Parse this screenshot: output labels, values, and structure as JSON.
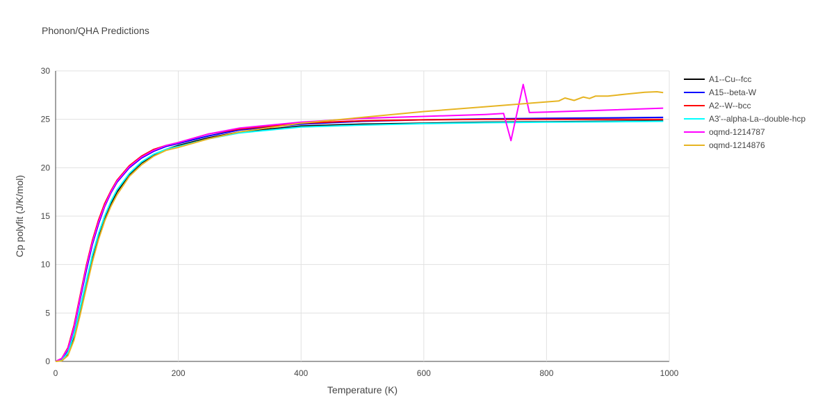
{
  "chart_data": {
    "type": "line",
    "title": "Phonon/QHA Predictions",
    "xlabel": "Temperature (K)",
    "ylabel": "Cp polyfit (J/K/mol)",
    "xlim": [
      0,
      1000
    ],
    "ylim": [
      0,
      30
    ],
    "xticks": [
      0,
      200,
      400,
      600,
      800,
      1000
    ],
    "yticks": [
      0,
      5,
      10,
      15,
      20,
      25,
      30
    ],
    "grid": true,
    "legend_position": "right",
    "series": [
      {
        "name": "A1--Cu--fcc",
        "color": "#000000",
        "x": [
          0,
          10,
          20,
          30,
          40,
          50,
          60,
          70,
          80,
          90,
          100,
          120,
          140,
          160,
          180,
          200,
          250,
          300,
          400,
          500,
          600,
          700,
          800,
          900,
          990
        ],
        "y": [
          0,
          0.1,
          0.8,
          2.6,
          5.2,
          8.0,
          10.7,
          12.9,
          14.8,
          16.3,
          17.5,
          19.3,
          20.5,
          21.3,
          21.9,
          22.3,
          23.1,
          23.7,
          24.3,
          24.5,
          24.6,
          24.7,
          24.75,
          24.8,
          24.85
        ]
      },
      {
        "name": "A15--beta-W",
        "color": "#0000ff",
        "x": [
          0,
          10,
          20,
          30,
          40,
          50,
          60,
          70,
          80,
          90,
          100,
          120,
          140,
          160,
          180,
          200,
          250,
          300,
          400,
          500,
          600,
          700,
          800,
          900,
          990
        ],
        "y": [
          0,
          0.2,
          1.2,
          3.4,
          6.4,
          9.4,
          12.1,
          14.2,
          16.0,
          17.4,
          18.5,
          20.0,
          21.0,
          21.7,
          22.2,
          22.5,
          23.3,
          23.9,
          24.5,
          24.8,
          24.95,
          25.05,
          25.1,
          25.15,
          25.2
        ]
      },
      {
        "name": "A2--W--bcc",
        "color": "#ff0000",
        "x": [
          0,
          10,
          20,
          30,
          40,
          50,
          60,
          70,
          80,
          90,
          100,
          120,
          140,
          160,
          180,
          200,
          250,
          300,
          400,
          500,
          600,
          700,
          800,
          900,
          990
        ],
        "y": [
          0,
          0.3,
          1.4,
          3.7,
          6.8,
          9.9,
          12.5,
          14.6,
          16.3,
          17.6,
          18.7,
          20.2,
          21.2,
          21.9,
          22.3,
          22.6,
          23.5,
          24.0,
          24.6,
          24.85,
          24.95,
          25.0,
          25.0,
          25.0,
          25.0
        ]
      },
      {
        "name": "A3'--alpha-La--double-hcp",
        "color": "#00ffff",
        "x": [
          0,
          10,
          20,
          30,
          40,
          50,
          60,
          70,
          80,
          90,
          100,
          120,
          140,
          160,
          180,
          200,
          250,
          300,
          400,
          500,
          600,
          700,
          800,
          900,
          990
        ],
        "y": [
          0,
          0.1,
          0.9,
          2.8,
          5.5,
          8.3,
          11.0,
          13.2,
          15.0,
          16.5,
          17.7,
          19.4,
          20.6,
          21.4,
          21.9,
          22.2,
          23.0,
          23.6,
          24.2,
          24.4,
          24.55,
          24.65,
          24.7,
          24.75,
          24.8
        ]
      },
      {
        "name": "oqmd-1214787",
        "color": "#ff00ff",
        "x": [
          0,
          10,
          20,
          30,
          40,
          50,
          60,
          70,
          80,
          90,
          100,
          120,
          140,
          160,
          180,
          200,
          250,
          300,
          400,
          500,
          600,
          700,
          730,
          742,
          762,
          772,
          800,
          900,
          990
        ],
        "y": [
          0,
          0.3,
          1.3,
          3.5,
          6.6,
          9.7,
          12.3,
          14.4,
          16.1,
          17.5,
          18.6,
          20.1,
          21.1,
          21.8,
          22.3,
          22.6,
          23.5,
          24.1,
          24.7,
          25.1,
          25.3,
          25.5,
          25.6,
          22.8,
          28.6,
          25.7,
          25.75,
          25.95,
          26.15
        ]
      },
      {
        "name": "oqmd-1214876",
        "color": "#e6b422",
        "x": [
          0,
          10,
          20,
          30,
          40,
          50,
          60,
          70,
          80,
          90,
          100,
          120,
          140,
          160,
          180,
          200,
          250,
          300,
          400,
          500,
          600,
          700,
          800,
          820,
          830,
          845,
          860,
          870,
          880,
          900,
          930,
          960,
          980,
          990
        ],
        "y": [
          0,
          0.05,
          0.6,
          2.2,
          4.8,
          7.6,
          10.3,
          12.6,
          14.5,
          16.0,
          17.2,
          19.1,
          20.3,
          21.2,
          21.8,
          22.1,
          23.0,
          23.7,
          24.6,
          25.2,
          25.8,
          26.3,
          26.8,
          26.9,
          27.2,
          26.95,
          27.3,
          27.15,
          27.4,
          27.4,
          27.6,
          27.8,
          27.85,
          27.75
        ]
      }
    ]
  }
}
